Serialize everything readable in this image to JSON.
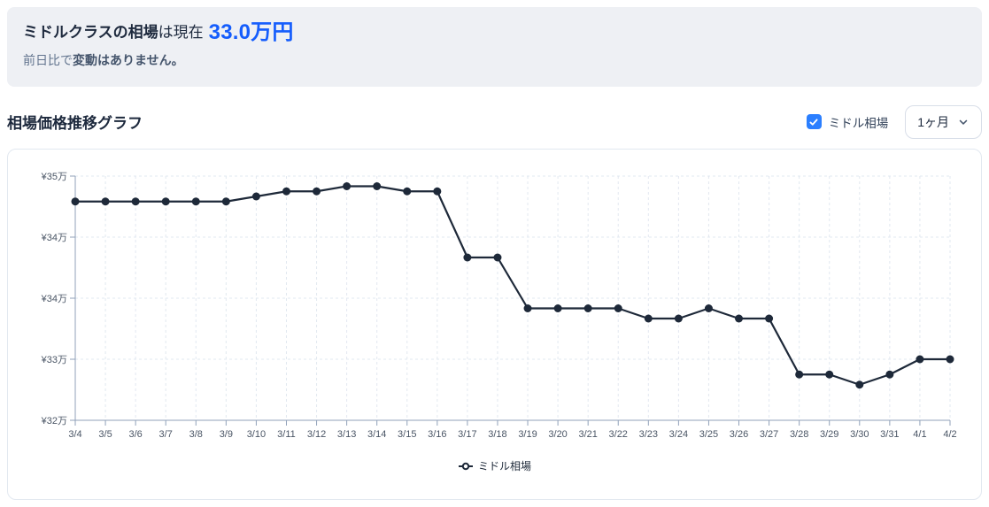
{
  "summary": {
    "title_bold": "ミドルクラスの相場",
    "title_rest": "は現在",
    "price": "33.0万円",
    "subtitle_prefix": "前日比で",
    "subtitle_bold": "変動はありません。"
  },
  "section": {
    "title": "相場価格推移グラフ",
    "checkbox_label": "ミドル相場",
    "checkbox_checked": true,
    "period_selected": "1ヶ月"
  },
  "colors": {
    "accent_blue": "#155dfc",
    "checkbox_blue": "#2b7fff",
    "line": "#1e2939",
    "grid": "#e2e8f0",
    "axis": "#90a1b9",
    "tick_text": "#4a5565",
    "banner_bg": "#eef0f4"
  },
  "chart_data": {
    "type": "line",
    "title": "相場価格推移グラフ",
    "xlabel": "",
    "ylabel": "",
    "unit": "万円",
    "grid": true,
    "legend_position": "bottom",
    "ylim": [
      32.4,
      34.8
    ],
    "y_ticks": [
      34.8,
      34.2,
      33.6,
      33.0,
      32.4
    ],
    "y_tick_labels": [
      "¥35万",
      "¥34万",
      "¥34万",
      "¥33万",
      "¥32万"
    ],
    "x": [
      "3/4",
      "3/5",
      "3/6",
      "3/7",
      "3/8",
      "3/9",
      "3/10",
      "3/11",
      "3/12",
      "3/13",
      "3/14",
      "3/15",
      "3/16",
      "3/17",
      "3/18",
      "3/19",
      "3/20",
      "3/21",
      "3/22",
      "3/23",
      "3/24",
      "3/25",
      "3/26",
      "3/27",
      "3/28",
      "3/29",
      "3/30",
      "3/31",
      "4/1",
      "4/2"
    ],
    "series": [
      {
        "name": "ミドル相場",
        "values": [
          34.55,
          34.55,
          34.55,
          34.55,
          34.55,
          34.55,
          34.6,
          34.65,
          34.65,
          34.7,
          34.7,
          34.65,
          34.65,
          34.0,
          34.0,
          33.5,
          33.5,
          33.5,
          33.5,
          33.4,
          33.4,
          33.5,
          33.4,
          33.4,
          32.85,
          32.85,
          32.75,
          32.85,
          33.0,
          33.0
        ]
      }
    ]
  }
}
